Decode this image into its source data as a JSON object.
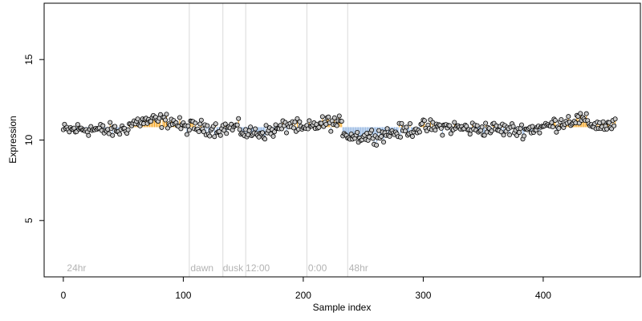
{
  "chart_data": {
    "type": "scatter",
    "title": "",
    "xlabel": "Sample index",
    "ylabel": "Expression",
    "xlim": [
      -16,
      481
    ],
    "ylim": [
      1.5,
      18.5
    ],
    "x_ticks": [
      0,
      100,
      200,
      300,
      400
    ],
    "y_ticks": [
      5,
      10,
      15
    ],
    "grid": false,
    "baseline": 10.8,
    "colors": {
      "above": "#f5a623",
      "below": "#8fb3e0",
      "point_fill": "#c8c8c8",
      "point_stroke": "#000000",
      "divider": "#d9d9d9",
      "region_text": "#b3b3b3"
    },
    "region_labels": [
      {
        "x": 3,
        "text": "24hr"
      },
      {
        "x": 106,
        "text": "dawn"
      },
      {
        "x": 133,
        "text": "dusk"
      },
      {
        "x": 152,
        "text": "12:00"
      },
      {
        "x": 204,
        "text": "0:00"
      },
      {
        "x": 238,
        "text": "48hr"
      }
    ],
    "dividers": [
      105,
      133,
      152,
      203,
      237
    ],
    "series_profile": {
      "n": 461,
      "anchors_x": [
        0,
        20,
        35,
        48,
        60,
        75,
        90,
        100,
        110,
        130,
        145,
        152,
        170,
        180,
        190,
        200,
        210,
        220,
        230,
        237,
        250,
        270,
        285,
        300,
        320,
        340,
        360,
        380,
        400,
        410,
        420,
        430,
        440,
        450,
        460
      ],
      "anchors_y": [
        10.6,
        10.7,
        10.6,
        10.6,
        11.1,
        11.2,
        11.2,
        10.8,
        10.8,
        10.7,
        10.8,
        10.4,
        10.5,
        10.7,
        11.0,
        10.6,
        10.9,
        11.1,
        11.0,
        10.3,
        10.2,
        10.4,
        10.6,
        10.8,
        10.8,
        10.7,
        10.7,
        10.6,
        10.8,
        11.0,
        11.2,
        11.3,
        11.0,
        10.9,
        10.9
      ],
      "noise": 0.22
    }
  },
  "region_text": {
    "r0": "24hr",
    "r1": "dawn",
    "r2": "dusk",
    "r3": "12:00",
    "r4": "0:00",
    "r5": "48hr"
  },
  "tick_text": {
    "x0": "0",
    "x1": "100",
    "x2": "200",
    "x3": "300",
    "x4": "400",
    "y0": "5",
    "y1": "10",
    "y2": "15"
  },
  "axis_text": {
    "x": "Sample index",
    "y": "Expression"
  }
}
